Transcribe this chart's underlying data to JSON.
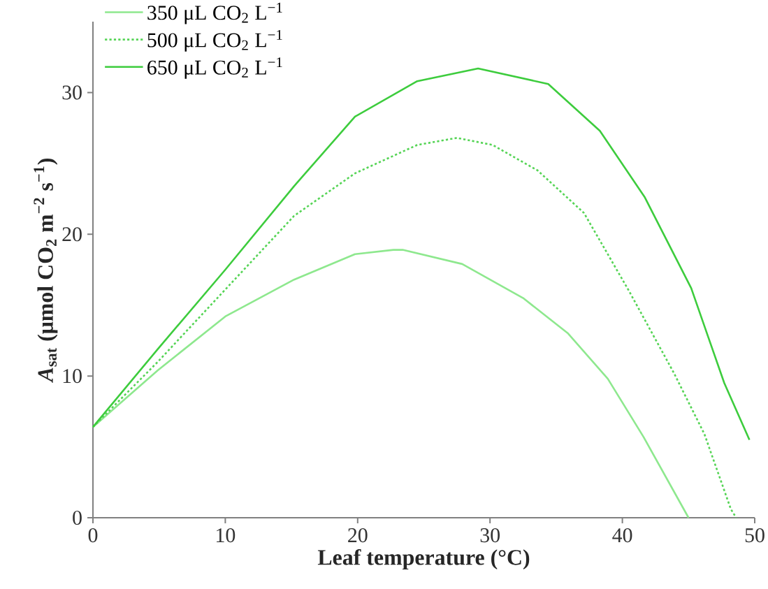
{
  "chart_data": {
    "type": "line",
    "xlabel": "Leaf temperature (°C)",
    "ylabel": "*A*$_{sat}$ (μmol CO$_{2}$ m$^{−2}$ s$^{−1}$)",
    "xlim": [
      0,
      50
    ],
    "ylim": [
      0,
      35
    ],
    "xticks": [
      0,
      10,
      20,
      30,
      40,
      50
    ],
    "yticks": [
      0,
      10,
      20,
      30
    ],
    "legend": "top left",
    "marker": "none",
    "series": [
      {
        "name": "350 μL CO$_{2}$ L$^{−1}$",
        "color": "#8ee88e",
        "line_style": "solid",
        "x": [
          0,
          4.9,
          10,
          15.2,
          19.8,
          22.7,
          23.4,
          27.9,
          32.5,
          35.9,
          38.9,
          41.6,
          45.0
        ],
        "values": [
          6.4,
          10.4,
          14.2,
          16.8,
          18.6,
          18.9,
          18.9,
          17.9,
          15.5,
          13.0,
          9.8,
          5.7,
          0
        ]
      },
      {
        "name": "500 μL CO$_{2}$ L$^{−1}$",
        "color": "#55d455",
        "line_style": "dotted",
        "x": [
          0,
          4.9,
          10,
          15.2,
          19.8,
          24.5,
          27.5,
          30.2,
          33.6,
          37.1,
          40.5,
          43.9,
          46.2,
          48.2,
          48.6
        ],
        "values": [
          6.4,
          11.0,
          16.1,
          21.3,
          24.3,
          26.3,
          26.8,
          26.3,
          24.5,
          21.5,
          16.0,
          10.2,
          5.9,
          0.6,
          0
        ]
      },
      {
        "name": "650 μL CO$_{2}$ L$^{−1}$",
        "color": "#3dcc3d",
        "line_style": "solid",
        "x": [
          0,
          4.9,
          10,
          15.2,
          19.8,
          24.5,
          29.1,
          34.4,
          38.3,
          41.7,
          45.2,
          47.7,
          49.6
        ],
        "values": [
          6.4,
          11.9,
          17.5,
          23.4,
          28.3,
          30.8,
          31.7,
          30.6,
          27.3,
          22.6,
          16.2,
          9.5,
          5.5
        ]
      }
    ]
  }
}
